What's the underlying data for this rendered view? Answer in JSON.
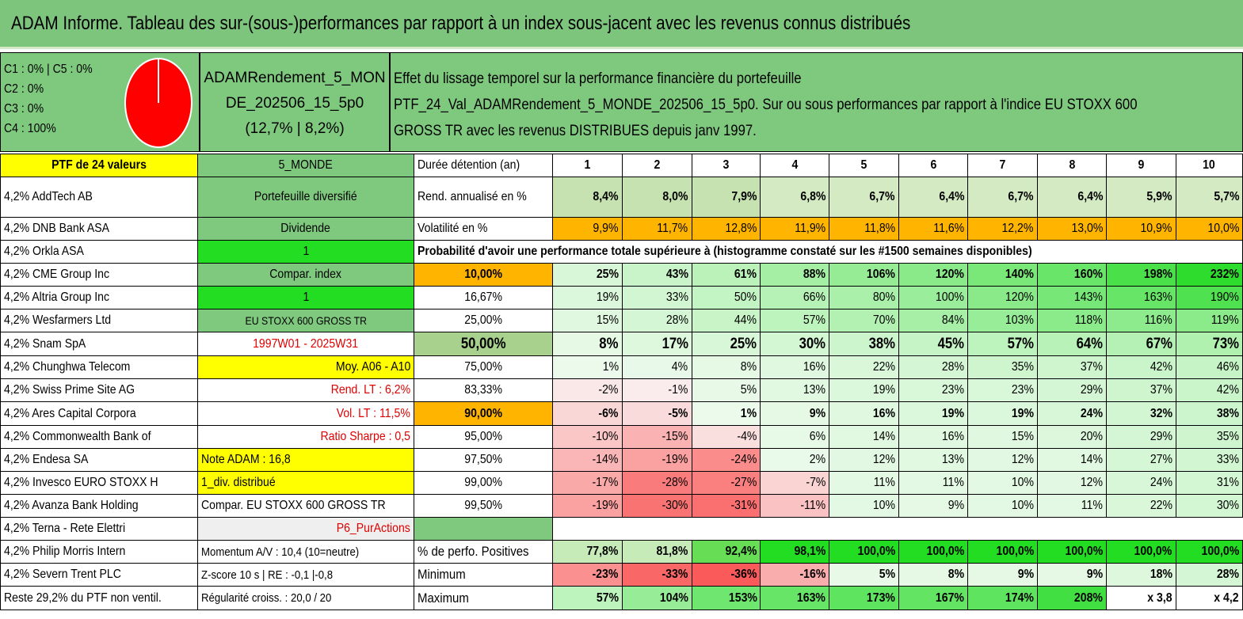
{
  "title": "ADAM Informe. Tableau des sur-(sous-)performances par rapport à un index sous-jacent avec les revenus connus distribués",
  "header": {
    "class_lines": [
      "C1 : 0% | C5 : 0%",
      "C2 : 0%",
      "C3 : 0%",
      "C4 : 100%"
    ],
    "pie": {
      "C4": 100,
      "color": "#ff0000"
    },
    "portfolio_name_lines": [
      "ADAMRendement_5_MON",
      "DE_202506_15_5p0",
      "(12,7% | 8,2%)"
    ],
    "description_lines": [
      "Effet du lissage temporel sur la performance financière du portefeuille",
      "PTF_24_Val_ADAMRendement_5_MONDE_202506_15_5p0. Sur ou sous performances par rapport à l'indice EU STOXX 600",
      "GROSS TR avec les revenus DISTRIBUES depuis janv 1997."
    ]
  },
  "left_col": [
    "PTF de 24 valeurs",
    "4,2% AddTech AB",
    "4,2% DNB Bank ASA",
    "4,2% Orkla ASA",
    "4,2% CME Group Inc",
    "4,2% Altria Group Inc",
    "4,2% Wesfarmers Ltd",
    "4,2% Snam SpA",
    "4,2% Chunghwa Telecom",
    "4,2% Swiss Prime Site AG",
    "4,2% Ares Capital Corpora",
    "4,2% Commonwealth Bank of",
    "4,2% Endesa SA",
    "4,2% Invesco EURO STOXX H",
    "4,2% Avanza Bank Holding",
    "4,2% Terna - Rete Elettri",
    "4,2% Philip Morris Intern",
    "4,2% Severn Trent PLC",
    "Reste 29,2% du PTF non ventil."
  ],
  "second_col": [
    "5_MONDE",
    "Portefeuille diversifié",
    "Dividende",
    "1",
    "Compar. index",
    "1",
    "EU STOXX 600 GROSS TR",
    "1997W01 - 2025W31",
    "Moy. A06 - A10",
    "Rend. LT : 6,2%",
    "Vol. LT : 11,5%",
    "Ratio Sharpe : 0,5",
    "Note ADAM : 16,8",
    "1_div. distribué",
    "Compar. EU STOXX 600 GROSS TR",
    "P6_PurActions",
    "Momentum A/V : 10,4 (10=neutre)",
    "Z-score 10 s | RE : -0,1 |-0,8",
    "Régularité croiss. : 20,0 / 20"
  ],
  "third_col_top": [
    "Durée détention (an)",
    "Rend. annualisé en %",
    "Volatilité en %"
  ],
  "years": [
    "1",
    "2",
    "3",
    "4",
    "5",
    "6",
    "7",
    "8",
    "9",
    "10"
  ],
  "rend": [
    "8,4%",
    "8,0%",
    "7,9%",
    "6,8%",
    "6,7%",
    "6,4%",
    "6,7%",
    "6,4%",
    "5,9%",
    "5,7%"
  ],
  "vol": [
    "9,9%",
    "11,7%",
    "12,8%",
    "11,9%",
    "11,8%",
    "11,6%",
    "12,2%",
    "13,0%",
    "10,9%",
    "10,0%"
  ],
  "prob_title": "Probabilité d'avoir une performance totale supérieure à (histogramme constaté sur les #1500 semaines disponibles)",
  "prob_rows": [
    {
      "p": "10,00%",
      "v": [
        "25%",
        "43%",
        "61%",
        "88%",
        "106%",
        "120%",
        "140%",
        "160%",
        "198%",
        "232%"
      ]
    },
    {
      "p": "16,67%",
      "v": [
        "19%",
        "33%",
        "50%",
        "66%",
        "80%",
        "100%",
        "120%",
        "143%",
        "163%",
        "190%"
      ]
    },
    {
      "p": "25,00%",
      "v": [
        "15%",
        "28%",
        "44%",
        "57%",
        "70%",
        "84%",
        "103%",
        "118%",
        "116%",
        "119%"
      ]
    },
    {
      "p": "50,00%",
      "v": [
        "8%",
        "17%",
        "25%",
        "30%",
        "38%",
        "45%",
        "57%",
        "64%",
        "67%",
        "73%"
      ]
    },
    {
      "p": "75,00%",
      "v": [
        "1%",
        "4%",
        "8%",
        "16%",
        "22%",
        "28%",
        "35%",
        "37%",
        "42%",
        "46%"
      ]
    },
    {
      "p": "83,33%",
      "v": [
        "-2%",
        "-1%",
        "5%",
        "13%",
        "19%",
        "23%",
        "23%",
        "29%",
        "37%",
        "42%"
      ]
    },
    {
      "p": "90,00%",
      "v": [
        "-6%",
        "-5%",
        "1%",
        "9%",
        "16%",
        "19%",
        "19%",
        "24%",
        "32%",
        "38%"
      ]
    },
    {
      "p": "95,00%",
      "v": [
        "-10%",
        "-15%",
        "-4%",
        "6%",
        "14%",
        "16%",
        "15%",
        "20%",
        "29%",
        "35%"
      ]
    },
    {
      "p": "97,50%",
      "v": [
        "-14%",
        "-19%",
        "-24%",
        "2%",
        "12%",
        "13%",
        "12%",
        "14%",
        "27%",
        "33%"
      ]
    },
    {
      "p": "99,00%",
      "v": [
        "-17%",
        "-28%",
        "-27%",
        "-7%",
        "11%",
        "11%",
        "10%",
        "12%",
        "24%",
        "31%"
      ]
    },
    {
      "p": "99,50%",
      "v": [
        "-19%",
        "-30%",
        "-31%",
        "-11%",
        "10%",
        "9%",
        "10%",
        "11%",
        "22%",
        "30%"
      ]
    }
  ],
  "bottom_rows": [
    {
      "label": "% de perfo. Positives",
      "v": [
        "77,8%",
        "81,8%",
        "92,4%",
        "98,1%",
        "100,0%",
        "100,0%",
        "100,0%",
        "100,0%",
        "100,0%",
        "100,0%"
      ]
    },
    {
      "label": "Minimum",
      "v": [
        "-23%",
        "-33%",
        "-36%",
        "-16%",
        "5%",
        "8%",
        "9%",
        "9%",
        "18%",
        "28%"
      ]
    },
    {
      "label": "Maximum",
      "v": [
        "57%",
        "104%",
        "153%",
        "163%",
        "173%",
        "167%",
        "174%",
        "208%",
        "x 3,8",
        "x 4,2"
      ]
    }
  ],
  "colors": {
    "title_green": "#7dc47d",
    "header_green": "#7fc97f",
    "yellow": "#ffff00",
    "bright_green": "#22dd22",
    "orange": "#ffb400",
    "light_gray": "#efefef"
  }
}
